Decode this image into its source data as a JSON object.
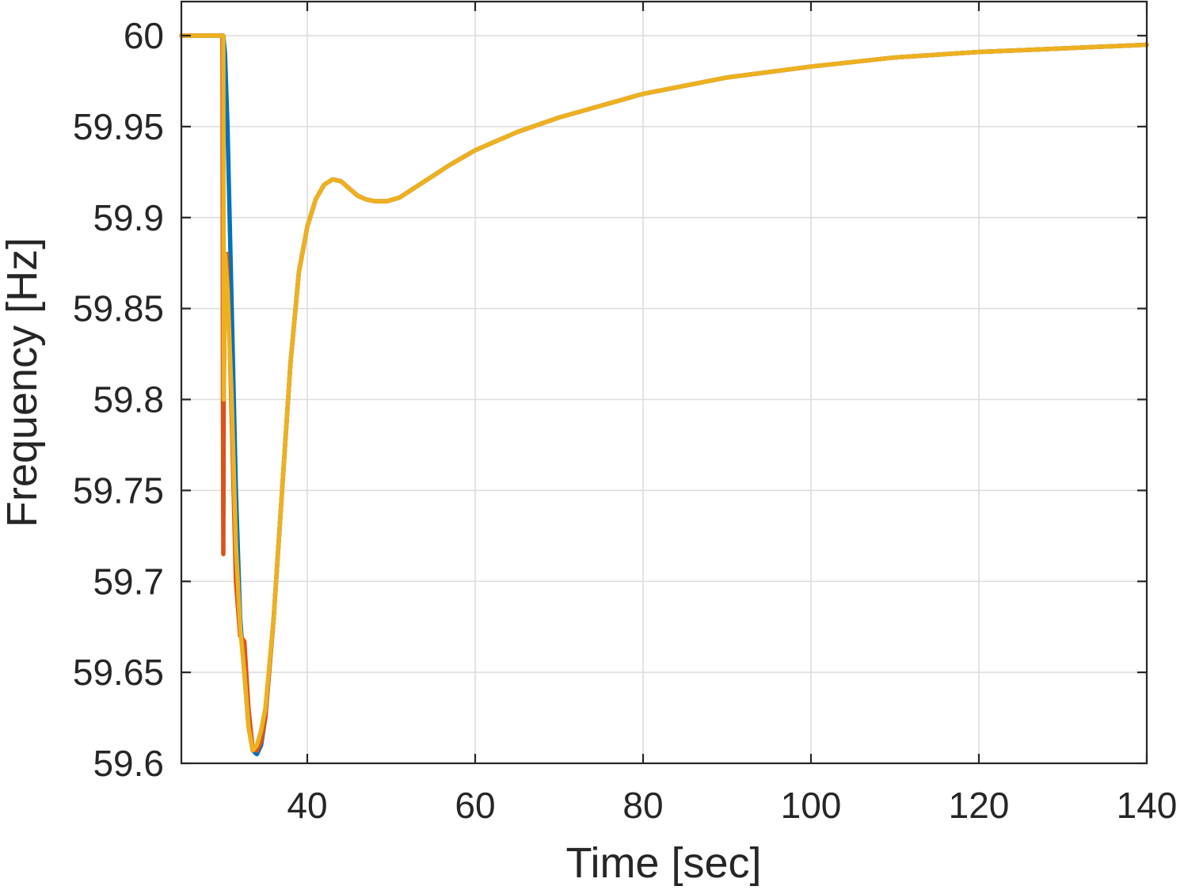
{
  "chart_data": {
    "type": "line",
    "title": "",
    "xlabel": "Time [sec]",
    "ylabel": "Frequency [Hz]",
    "xlim": [
      25,
      140
    ],
    "ylim": [
      59.6,
      60.02
    ],
    "xticks": [
      40,
      60,
      80,
      100,
      120,
      140
    ],
    "xtick_labels": [
      "40",
      "60",
      "80",
      "100",
      "120",
      "140"
    ],
    "yticks": [
      59.6,
      59.65,
      59.7,
      59.75,
      59.8,
      59.85,
      59.9,
      59.95,
      60.0
    ],
    "ytick_labels": [
      "59.6",
      "59.65",
      "59.7",
      "59.75",
      "59.8",
      "59.85",
      "59.9",
      "59.95",
      "60"
    ],
    "grid": true,
    "legend": "none",
    "series": [
      {
        "color": "#0072BD",
        "x": [
          25,
          29.9,
          30.0,
          30.2,
          30.5,
          31.0,
          31.5,
          32.0,
          32.5,
          33.0,
          33.5,
          34.0,
          34.5,
          35.0,
          36.0,
          37.0,
          38.0,
          39.0,
          40.0,
          41.0,
          42.0,
          43.0,
          44.0,
          45.0,
          46.0,
          47.0,
          48.0,
          49.5,
          51.0,
          53.0,
          55.0,
          57.0,
          60.0,
          65.0,
          70.0,
          80.0,
          90.0,
          100.0,
          110.0,
          120.0,
          130.0,
          140.0
        ],
        "y": [
          60.0,
          60.0,
          60.0,
          59.99,
          59.95,
          59.85,
          59.75,
          59.68,
          59.65,
          59.62,
          59.607,
          59.605,
          59.61,
          59.625,
          59.68,
          59.75,
          59.82,
          59.87,
          59.895,
          59.91,
          59.918,
          59.921,
          59.92,
          59.916,
          59.912,
          59.91,
          59.909,
          59.909,
          59.911,
          59.917,
          59.923,
          59.929,
          59.937,
          59.947,
          59.955,
          59.968,
          59.977,
          59.983,
          59.988,
          59.991,
          59.993,
          59.995
        ]
      },
      {
        "color": "#D95319",
        "x": [
          25,
          29.9,
          29.95,
          30.0,
          30.05,
          30.2,
          30.4,
          30.7,
          31.0,
          31.5,
          32.0,
          32.5,
          33.0,
          33.5,
          34.0,
          34.5,
          35.0,
          36.0,
          37.0,
          38.0,
          39.0,
          40.0,
          41.0,
          42.0,
          43.0,
          44.0,
          45.0,
          46.0,
          47.0,
          48.0,
          49.5,
          51.0,
          53.0,
          55.0,
          57.0,
          60.0,
          65.0,
          70.0,
          80.0,
          90.0,
          100.0,
          110.0,
          120.0,
          130.0,
          140.0
        ],
        "y": [
          60.0,
          60.0,
          59.8,
          59.715,
          59.8,
          59.87,
          59.88,
          59.84,
          59.79,
          59.7,
          59.67,
          59.667,
          59.63,
          59.608,
          59.607,
          59.612,
          59.625,
          59.68,
          59.75,
          59.82,
          59.87,
          59.895,
          59.91,
          59.918,
          59.921,
          59.92,
          59.916,
          59.912,
          59.91,
          59.909,
          59.909,
          59.911,
          59.917,
          59.923,
          59.929,
          59.937,
          59.947,
          59.955,
          59.968,
          59.977,
          59.983,
          59.988,
          59.991,
          59.993,
          59.995
        ]
      },
      {
        "color": "#EDB120",
        "x": [
          25,
          29.9,
          30.0,
          30.05,
          30.2,
          30.5,
          31.0,
          31.5,
          32.0,
          32.5,
          33.0,
          33.5,
          34.0,
          34.5,
          35.0,
          36.0,
          37.0,
          38.0,
          39.0,
          40.0,
          41.0,
          42.0,
          43.0,
          44.0,
          45.0,
          46.0,
          47.0,
          48.0,
          49.5,
          51.0,
          53.0,
          55.0,
          57.0,
          60.0,
          65.0,
          70.0,
          80.0,
          90.0,
          100.0,
          110.0,
          120.0,
          130.0,
          140.0
        ],
        "y": [
          60.0,
          60.0,
          60.0,
          59.8,
          59.88,
          59.86,
          59.8,
          59.72,
          59.675,
          59.65,
          59.62,
          59.607,
          59.61,
          59.618,
          59.63,
          59.68,
          59.75,
          59.82,
          59.87,
          59.895,
          59.91,
          59.918,
          59.921,
          59.92,
          59.916,
          59.912,
          59.91,
          59.909,
          59.909,
          59.911,
          59.917,
          59.923,
          59.929,
          59.937,
          59.947,
          59.955,
          59.968,
          59.977,
          59.983,
          59.988,
          59.991,
          59.993,
          59.995
        ]
      }
    ]
  }
}
